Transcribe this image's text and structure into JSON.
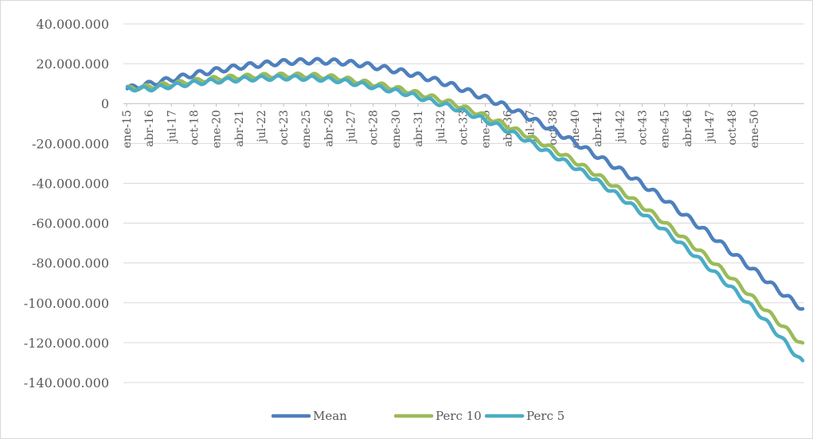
{
  "chart_data": {
    "type": "line",
    "title": "",
    "xlabel": "",
    "ylabel": "",
    "ylim": [
      -140000000,
      40000000
    ],
    "y_tick_values": [
      40000000,
      20000000,
      0,
      -20000000,
      -40000000,
      -60000000,
      -80000000,
      -100000000,
      -120000000,
      -140000000
    ],
    "y_tick_labels": [
      "40.000.000",
      "20.000.000",
      "0",
      "-20.000.000",
      "-40.000.000",
      "-60.000.000",
      "-80.000.000",
      "-100.000.000",
      "-120.000.000",
      "-140.000.000"
    ],
    "x_tick_labels": [
      "ene-15",
      "abr-16",
      "jul-17",
      "oct-18",
      "ene-20",
      "abr-21",
      "jul-22",
      "oct-23",
      "ene-25",
      "abr-26",
      "jul-27",
      "oct-28",
      "ene-30",
      "abr-31",
      "jul-32",
      "oct-33",
      "ene-35",
      "abr-36",
      "jul-37",
      "oct-38",
      "ene-40",
      "abr-41",
      "jul-42",
      "oct-43",
      "ene-45",
      "abr-46",
      "jul-47",
      "oct-48",
      "ene-50"
    ],
    "grid": true,
    "legend_position": "bottom",
    "x": [
      0,
      5,
      10,
      15,
      20,
      25,
      30,
      35,
      40,
      45,
      50,
      55,
      60,
      65,
      70,
      75,
      80,
      85,
      90,
      95,
      100,
      105,
      110,
      115,
      120,
      125,
      130,
      135,
      140,
      145
    ],
    "series": [
      {
        "name": "Mean",
        "color": "#4e80bd",
        "values": [
          7500000,
          10000000,
          12500000,
          15000000,
          17000000,
          18800000,
          20000000,
          21000000,
          21300000,
          21000000,
          19800000,
          17800000,
          15500000,
          12500000,
          9000000,
          4500000,
          0,
          -5500000,
          -11500000,
          -18000000,
          -25000000,
          -32000000,
          -39500000,
          -47500000,
          -56500000,
          -65500000,
          -75000000,
          -84500000,
          -94000000,
          -103000000
        ]
      },
      {
        "name": "Perc 10",
        "color": "#9bbb59",
        "values": [
          7500000,
          8500000,
          10000000,
          11500000,
          12800000,
          13500000,
          14000000,
          14200000,
          14000000,
          13000000,
          11000000,
          9000000,
          6500000,
          3500000,
          0,
          -4500000,
          -9500000,
          -15000000,
          -21000000,
          -27500000,
          -34500000,
          -42000000,
          -50500000,
          -59000000,
          -68500000,
          -78000000,
          -88000000,
          -99000000,
          -110000000,
          -121000000
        ]
      },
      {
        "name": "Perc 5",
        "color": "#4bacc6",
        "values": [
          7500000,
          7500000,
          9000000,
          10500000,
          11500000,
          12300000,
          12800000,
          13000000,
          12700000,
          11700000,
          9700000,
          7500000,
          5000000,
          1500000,
          -2000000,
          -6500000,
          -11500000,
          -17500000,
          -24000000,
          -30500000,
          -37500000,
          -45500000,
          -54000000,
          -63000000,
          -72500000,
          -82500000,
          -93000000,
          -104000000,
          -116500000,
          -130000000
        ]
      }
    ]
  }
}
